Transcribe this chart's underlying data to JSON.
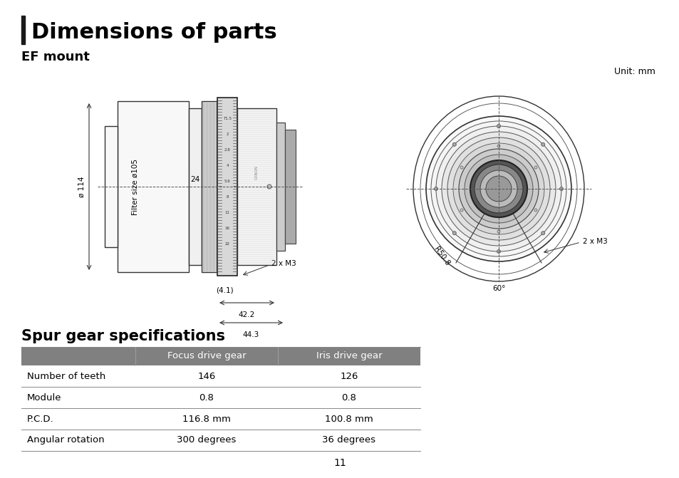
{
  "title": "Dimensions of parts",
  "subtitle": "EF mount",
  "unit_label": "Unit: mm",
  "spur_gear_title": "Spur gear specifications",
  "table_headers": [
    "",
    "Focus drive gear",
    "Iris drive gear"
  ],
  "table_rows": [
    [
      "Number of teeth",
      "146",
      "126"
    ],
    [
      "Module",
      "0.8",
      "0.8"
    ],
    [
      "P.C.D.",
      "116.8 mm",
      "100.8 mm"
    ],
    [
      "Angular rotation",
      "300 degrees",
      "36 degrees"
    ]
  ],
  "header_bg": "#808080",
  "header_text": "#ffffff",
  "row_text": "#000000",
  "accent_bar_color": "#1a1a1a",
  "page_number": "11",
  "bg_color": "#ffffff",
  "title_fontsize": 22,
  "subtitle_fontsize": 13,
  "table_fontsize": 9.5
}
